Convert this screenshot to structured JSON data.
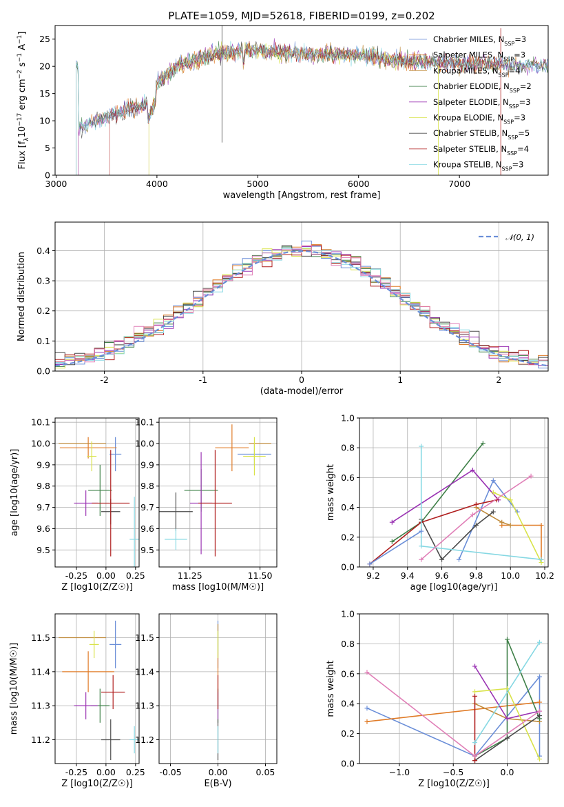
{
  "title": "PLATE=1059, MJD=52618, FIBERID=0199, z=0.202",
  "colors": [
    "#6a8ed8",
    "#e07b27",
    "#bf8a3a",
    "#3f8048",
    "#9a33b3",
    "#d9e34a",
    "#4a4a4a",
    "#b01f1f",
    "#86d8e3",
    "#e07fb7"
  ],
  "chart_data": [
    {
      "name": "spectrum",
      "type": "line",
      "xlabel": "wavelength [Angstrom, rest frame]",
      "ylabel": "Flux [f_λ 10^-17 erg cm^-2 s^-1 A^-1]",
      "ylabel_parts": [
        "Flux [f",
        "λ",
        "10",
        "−17",
        " erg cm",
        "−2",
        " s",
        "−1",
        " A",
        "−1",
        "]"
      ],
      "xlim": [
        2990,
        7880
      ],
      "ylim": [
        0,
        27.5
      ],
      "xticks": [
        3000,
        4000,
        5000,
        6000,
        7000
      ],
      "yticks": [
        0,
        5,
        10,
        15,
        20,
        25
      ],
      "legend": [
        {
          "label": "Chabrier MILES",
          "n": "3"
        },
        {
          "label": "Salpeter MILES",
          "n": "3"
        },
        {
          "label": "Kroupa MILES",
          "n": "4"
        },
        {
          "label": "Chabrier ELODIE",
          "n": "2"
        },
        {
          "label": "Salpeter ELODIE",
          "n": "3"
        },
        {
          "label": "Kroupa ELODIE",
          "n": "3"
        },
        {
          "label": "Chabrier STELIB",
          "n": "5"
        },
        {
          "label": "Salpeter STELIB",
          "n": "4"
        },
        {
          "label": "Kroupa STELIB",
          "n": "3"
        }
      ],
      "legend_sub": "SSP",
      "continuum_knots": [
        [
          3220,
          8.5
        ],
        [
          3400,
          10
        ],
        [
          3700,
          12
        ],
        [
          3900,
          13
        ],
        [
          4000,
          17
        ],
        [
          4200,
          20
        ],
        [
          4500,
          22
        ],
        [
          4900,
          23
        ],
        [
          5300,
          22.5
        ],
        [
          6000,
          22
        ],
        [
          6500,
          21
        ],
        [
          7000,
          20.5
        ],
        [
          7400,
          20.5
        ],
        [
          7880,
          20
        ]
      ],
      "series_start": [
        3200,
        3220,
        3920,
        3200,
        3220,
        3920,
        3200,
        3530,
        3200
      ],
      "series_end": [
        7880,
        7880,
        7420,
        7880,
        7880,
        6780,
        7880,
        7420,
        7880
      ]
    },
    {
      "name": "residuals",
      "type": "histogram",
      "xlabel": "(data-model)/error",
      "ylabel": "Normed distribution",
      "xlim": [
        -2.5,
        2.5
      ],
      "ylim": [
        0,
        0.495
      ],
      "xticks": [
        -2,
        -1,
        0,
        1,
        2
      ],
      "yticks": [
        0.0,
        0.1,
        0.2,
        0.3,
        0.4
      ],
      "bin_width": 0.1,
      "legend": "𝒩(0, 1)"
    },
    {
      "name": "age-vs-Z",
      "type": "scatter",
      "xlabel": "Z [log10(Z/Z☉)]",
      "ylabel": "age  [log10(age/yr)]",
      "xlim": [
        -0.43,
        0.28
      ],
      "ylim": [
        9.42,
        10.12
      ],
      "xticks": [
        -0.25,
        0.0,
        0.25
      ],
      "yticks": [
        9.5,
        9.6,
        9.7,
        9.8,
        9.9,
        10.0,
        10.1
      ],
      "points": [
        {
          "x": 0.08,
          "y": 9.95,
          "xe": 0.05,
          "ye": 0.08
        },
        {
          "x": -0.15,
          "y": 9.98,
          "xe": 0.24,
          "ye": 0.05
        },
        {
          "x": -0.2,
          "y": 10.0,
          "xe": 0.2,
          "ye": 0.0
        },
        {
          "x": -0.05,
          "y": 9.78,
          "xe": 0.1,
          "ye": 0.12
        },
        {
          "x": -0.17,
          "y": 9.72,
          "xe": 0.1,
          "ye": 0.06
        },
        {
          "x": -0.12,
          "y": 9.94,
          "xe": 0.04,
          "ye": 0.07
        },
        {
          "x": 0.04,
          "y": 9.68,
          "xe": 0.08,
          "ye": 0.06
        },
        {
          "x": 0.04,
          "y": 9.72,
          "xe": 0.16,
          "ye": 0.25
        },
        {
          "x": 0.24,
          "y": 9.55,
          "xe": 0.04,
          "ye": 0.2
        }
      ]
    },
    {
      "name": "age-vs-mass",
      "type": "scatter",
      "xlabel": "mass [log10(M/M☉)]",
      "ylabel": "",
      "xlim": [
        11.14,
        11.56
      ],
      "ylim": [
        9.42,
        10.12
      ],
      "xticks": [
        11.25,
        11.5
      ],
      "yticks": [
        9.5,
        9.6,
        9.7,
        9.8,
        9.9,
        10.0,
        10.1
      ],
      "points": [
        {
          "x": 11.48,
          "y": 9.95,
          "xe": 0.06,
          "ye": 0.05
        },
        {
          "x": 11.4,
          "y": 9.98,
          "xe": 0.06,
          "ye": 0.11
        },
        {
          "x": 11.5,
          "y": 10.0,
          "xe": 0.04,
          "ye": 0.0
        },
        {
          "x": 11.29,
          "y": 9.78,
          "xe": 0.06,
          "ye": 0.1
        },
        {
          "x": 11.29,
          "y": 9.72,
          "xe": 0.04,
          "ye": 0.24
        },
        {
          "x": 11.48,
          "y": 9.94,
          "xe": 0.04,
          "ye": 0.09
        },
        {
          "x": 11.2,
          "y": 9.68,
          "xe": 0.06,
          "ye": 0.09
        },
        {
          "x": 11.34,
          "y": 9.72,
          "xe": 0.06,
          "ye": 0.25
        },
        {
          "x": 11.2,
          "y": 9.55,
          "xe": 0.04,
          "ye": 0.05
        }
      ]
    },
    {
      "name": "weight-vs-age",
      "type": "line",
      "xlabel": "age  [log10(age/yr)]",
      "ylabel": "mass weight",
      "xlim": [
        9.12,
        10.22
      ],
      "ylim": [
        0,
        1.0
      ],
      "xticks": [
        9.2,
        9.4,
        9.6,
        9.8,
        10.0,
        10.2
      ],
      "yticks": [
        0.0,
        0.2,
        0.4,
        0.6,
        0.8,
        1.0
      ],
      "series": [
        {
          "x": [
            9.7,
            9.9,
            10.04
          ],
          "y": [
            0.05,
            0.58,
            0.37
          ]
        },
        {
          "x": [
            9.95,
            10.18,
            10.18
          ],
          "y": [
            0.28,
            0.28,
            0.05
          ]
        },
        {
          "x": [
            9.8,
            9.95,
            10.0
          ],
          "y": [
            0.4,
            0.3,
            0.28
          ]
        },
        {
          "x": [
            9.31,
            9.48,
            9.84
          ],
          "y": [
            0.17,
            0.3,
            0.83
          ]
        },
        {
          "x": [
            9.31,
            9.78,
            9.93
          ],
          "y": [
            0.3,
            0.65,
            0.45
          ]
        },
        {
          "x": [
            9.9,
            10.0,
            10.18
          ],
          "y": [
            0.5,
            0.45,
            0.03
          ]
        },
        {
          "x": [
            9.48,
            9.6,
            9.8,
            9.9
          ],
          "y": [
            0.32,
            0.05,
            0.28,
            0.37
          ]
        },
        {
          "x": [
            9.18,
            9.48,
            9.8,
            9.92
          ],
          "y": [
            0.02,
            0.3,
            0.42,
            0.45
          ]
        },
        {
          "x": [
            9.48,
            9.48,
            10.18
          ],
          "y": [
            0.81,
            0.14,
            0.05
          ]
        },
        {
          "x": [
            9.48,
            9.78,
            10.12
          ],
          "y": [
            0.05,
            0.35,
            0.61
          ]
        },
        {
          "x": [
            9.18,
            9.48
          ],
          "y": [
            0.02,
            0.24
          ]
        }
      ]
    },
    {
      "name": "mass-vs-Z",
      "type": "scatter",
      "xlabel": "Z [log10(Z/Z☉)]",
      "ylabel": "mass [log10(M/M☉)]",
      "xlim": [
        -0.43,
        0.28
      ],
      "ylim": [
        11.13,
        11.57
      ],
      "xticks": [
        -0.25,
        0.0,
        0.25
      ],
      "yticks": [
        11.2,
        11.3,
        11.4,
        11.5
      ],
      "points": [
        {
          "x": 0.08,
          "y": 11.48,
          "xe": 0.05,
          "ye": 0.07
        },
        {
          "x": -0.15,
          "y": 11.4,
          "xe": 0.22,
          "ye": 0.06
        },
        {
          "x": -0.2,
          "y": 11.5,
          "xe": 0.2,
          "ye": 0.0
        },
        {
          "x": -0.05,
          "y": 11.3,
          "xe": 0.08,
          "ye": 0.05
        },
        {
          "x": -0.17,
          "y": 11.3,
          "xe": 0.1,
          "ye": 0.04
        },
        {
          "x": -0.1,
          "y": 11.48,
          "xe": 0.04,
          "ye": 0.04
        },
        {
          "x": 0.04,
          "y": 11.2,
          "xe": 0.08,
          "ye": 0.06
        },
        {
          "x": 0.06,
          "y": 11.34,
          "xe": 0.1,
          "ye": 0.05
        },
        {
          "x": 0.24,
          "y": 11.2,
          "xe": 0.04,
          "ye": 0.04
        }
      ]
    },
    {
      "name": "mass-vs-EBV",
      "type": "scatter",
      "xlabel": "E(B-V)",
      "ylabel": "",
      "xlim": [
        -0.062,
        0.062
      ],
      "ylim": [
        11.13,
        11.57
      ],
      "xticks": [
        -0.05,
        0.0,
        0.05
      ],
      "yticks": [
        11.2,
        11.3,
        11.4,
        11.5
      ],
      "points": [
        {
          "x": 0.0,
          "y": 11.48,
          "xe": 0.0,
          "ye": 0.07
        },
        {
          "x": 0.0,
          "y": 11.4,
          "xe": 0.0,
          "ye": 0.06
        },
        {
          "x": 0.0,
          "y": 11.5,
          "xe": 0.0,
          "ye": 0.04
        },
        {
          "x": 0.0,
          "y": 11.3,
          "xe": 0.0,
          "ye": 0.05
        },
        {
          "x": 0.0,
          "y": 11.3,
          "xe": 0.0,
          "ye": 0.04
        },
        {
          "x": 0.0,
          "y": 11.48,
          "xe": 0.0,
          "ye": 0.04
        },
        {
          "x": 0.0,
          "y": 11.2,
          "xe": 0.0,
          "ye": 0.06
        },
        {
          "x": 0.0,
          "y": 11.34,
          "xe": 0.0,
          "ye": 0.05
        },
        {
          "x": 0.0,
          "y": 11.2,
          "xe": 0.0,
          "ye": 0.04
        }
      ]
    },
    {
      "name": "weight-vs-Z",
      "type": "line",
      "xlabel": "Z [log10(Z/Z☉)]",
      "ylabel": "mass weight",
      "xlim": [
        -1.37,
        0.38
      ],
      "ylim": [
        0,
        1.0
      ],
      "xticks": [
        -1.0,
        -0.5,
        0.0
      ],
      "yticks": [
        0.0,
        0.2,
        0.4,
        0.6,
        0.8,
        1.0
      ],
      "series": [
        {
          "x": [
            -1.3,
            -0.3,
            0.3,
            0.3
          ],
          "y": [
            0.37,
            0.05,
            0.58,
            0.05
          ]
        },
        {
          "x": [
            -1.3,
            0.3
          ],
          "y": [
            0.28,
            0.41
          ]
        },
        {
          "x": [
            -0.3,
            0.0,
            0.3
          ],
          "y": [
            0.4,
            0.3,
            0.28
          ]
        },
        {
          "x": [
            -0.3,
            0.0,
            0.0,
            0.3
          ],
          "y": [
            0.05,
            0.17,
            0.83,
            0.3
          ]
        },
        {
          "x": [
            -0.3,
            0.0,
            0.3
          ],
          "y": [
            0.65,
            0.3,
            0.35
          ]
        },
        {
          "x": [
            -0.3,
            0.0,
            0.3
          ],
          "y": [
            0.48,
            0.5,
            0.03
          ]
        },
        {
          "x": [
            -0.3,
            0.0,
            0.3
          ],
          "y": [
            0.02,
            0.17,
            0.32
          ]
        },
        {
          "x": [
            -0.3,
            -0.3
          ],
          "y": [
            0.02,
            0.45
          ]
        },
        {
          "x": [
            -0.3,
            0.3
          ],
          "y": [
            0.14,
            0.81
          ]
        },
        {
          "x": [
            -1.3,
            -0.3,
            0.3
          ],
          "y": [
            0.61,
            0.05,
            0.35
          ]
        }
      ]
    }
  ]
}
